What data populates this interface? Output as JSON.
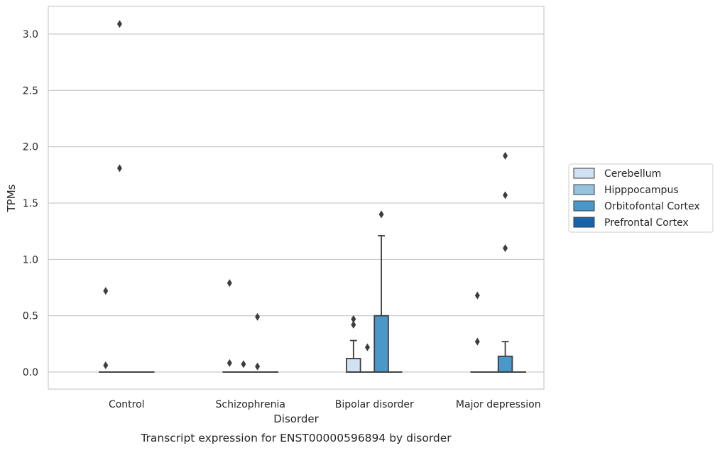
{
  "caption": "Transcript expression for ENST00000596894 by disorder",
  "chart_data": {
    "type": "box",
    "title": "",
    "xlabel": "Disorder",
    "ylabel": "TPMs",
    "ylim": [
      -0.15,
      3.25
    ],
    "yticks": [
      0.0,
      0.5,
      1.0,
      1.5,
      2.0,
      2.5,
      3.0
    ],
    "ytick_labels": [
      "0.0",
      "0.5",
      "1.0",
      "1.5",
      "2.0",
      "2.5",
      "3.0"
    ],
    "grid": "horizontal",
    "legend_position": "right",
    "categories": [
      "Control",
      "Schizophrenia",
      "Bipolar disorder",
      "Major depression"
    ],
    "series": [
      {
        "name": "Cerebellum",
        "color": "#d0e1f2",
        "boxes": [
          {
            "q1": 0,
            "median": 0,
            "q3": 0,
            "whisker_low": 0,
            "whisker_high": 0,
            "outliers": [
              0.06,
              0.72
            ]
          },
          {
            "q1": 0,
            "median": 0,
            "q3": 0,
            "whisker_low": 0,
            "whisker_high": 0,
            "outliers": [
              0.08,
              0.79
            ]
          },
          {
            "q1": 0,
            "median": 0,
            "q3": 0.12,
            "whisker_low": 0,
            "whisker_high": 0.28,
            "outliers": [
              0.42,
              0.47
            ]
          },
          {
            "q1": 0,
            "median": 0,
            "q3": 0,
            "whisker_low": 0,
            "whisker_high": 0,
            "outliers": [
              0.27,
              0.68
            ]
          }
        ]
      },
      {
        "name": "Hipppocampus",
        "color": "#94c4df",
        "boxes": [
          {
            "q1": 0,
            "median": 0,
            "q3": 0,
            "whisker_low": 0,
            "whisker_high": 0,
            "outliers": [
              1.81,
              3.09
            ]
          },
          {
            "q1": 0,
            "median": 0,
            "q3": 0,
            "whisker_low": 0,
            "whisker_high": 0,
            "outliers": [
              0.07
            ]
          },
          {
            "q1": 0,
            "median": 0,
            "q3": 0,
            "whisker_low": 0,
            "whisker_high": 0,
            "outliers": [
              0.22
            ]
          },
          {
            "q1": 0,
            "median": 0,
            "q3": 0,
            "whisker_low": 0,
            "whisker_high": 0,
            "outliers": []
          }
        ]
      },
      {
        "name": "Orbitofontal Cortex",
        "color": "#4a98c9",
        "boxes": [
          {
            "q1": 0,
            "median": 0,
            "q3": 0,
            "whisker_low": 0,
            "whisker_high": 0,
            "outliers": []
          },
          {
            "q1": 0,
            "median": 0,
            "q3": 0,
            "whisker_low": 0,
            "whisker_high": 0,
            "outliers": [
              0.05,
              0.49
            ]
          },
          {
            "q1": 0,
            "median": 0,
            "q3": 0.5,
            "whisker_low": 0,
            "whisker_high": 1.21,
            "outliers": [
              1.4
            ]
          },
          {
            "q1": 0,
            "median": 0,
            "q3": 0.14,
            "whisker_low": 0,
            "whisker_high": 0.27,
            "outliers": [
              1.1,
              1.57,
              1.92
            ]
          }
        ]
      },
      {
        "name": "Prefrontal Cortex",
        "color": "#1764ab",
        "boxes": [
          {
            "q1": 0,
            "median": 0,
            "q3": 0,
            "whisker_low": 0,
            "whisker_high": 0,
            "outliers": []
          },
          {
            "q1": 0,
            "median": 0,
            "q3": 0,
            "whisker_low": 0,
            "whisker_high": 0,
            "outliers": []
          },
          {
            "q1": 0,
            "median": 0,
            "q3": 0,
            "whisker_low": 0,
            "whisker_high": 0,
            "outliers": []
          },
          {
            "q1": 0,
            "median": 0,
            "q3": 0,
            "whisker_low": 0,
            "whisker_high": 0,
            "outliers": []
          }
        ]
      }
    ]
  }
}
